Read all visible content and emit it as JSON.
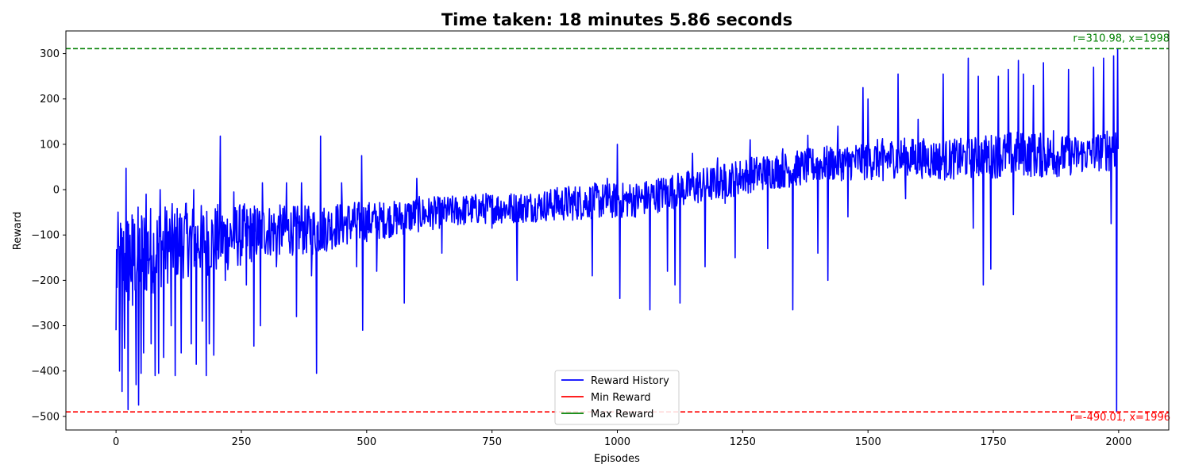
{
  "chart_data": {
    "type": "line",
    "title": "Time taken: 18 minutes 5.86 seconds",
    "xlabel": "Episodes",
    "ylabel": "Reward",
    "xlim": [
      -100,
      2100
    ],
    "ylim": [
      -530,
      350
    ],
    "xticks": [
      0,
      250,
      500,
      750,
      1000,
      1250,
      1500,
      1750,
      2000
    ],
    "yticks": [
      -500,
      -400,
      -300,
      -200,
      -100,
      0,
      100,
      200,
      300
    ],
    "grid": false,
    "legend_position": "bottom-center",
    "series": [
      {
        "name": "Reward History",
        "color": "#0000ff",
        "x_start": 0,
        "x_end": 1999,
        "band_x": [
          0,
          50,
          100,
          150,
          200,
          250,
          300,
          350,
          400,
          450,
          500,
          550,
          600,
          650,
          700,
          750,
          800,
          850,
          900,
          950,
          1000,
          1050,
          1100,
          1150,
          1200,
          1250,
          1300,
          1350,
          1400,
          1450,
          1500,
          1550,
          1600,
          1650,
          1700,
          1750,
          1800,
          1850,
          1900,
          1950,
          1999
        ],
        "band_mean": [
          -170,
          -140,
          -120,
          -110,
          -110,
          -100,
          -90,
          -90,
          -90,
          -75,
          -70,
          -65,
          -55,
          -50,
          -45,
          -40,
          -40,
          -35,
          -30,
          -25,
          -25,
          -20,
          -5,
          5,
          15,
          30,
          40,
          45,
          55,
          60,
          65,
          70,
          70,
          65,
          70,
          75,
          80,
          75,
          75,
          80,
          100
        ],
        "band_spread": [
          120,
          110,
          90,
          80,
          80,
          70,
          60,
          55,
          55,
          50,
          45,
          40,
          40,
          35,
          35,
          35,
          35,
          35,
          40,
          40,
          40,
          40,
          40,
          40,
          40,
          40,
          40,
          40,
          40,
          40,
          45,
          45,
          45,
          45,
          45,
          50,
          50,
          50,
          45,
          40,
          60
        ],
        "spikes": [
          {
            "x": 0,
            "y": -310
          },
          {
            "x": 7,
            "y": -400
          },
          {
            "x": 12,
            "y": -445
          },
          {
            "x": 17,
            "y": -350
          },
          {
            "x": 20,
            "y": 47
          },
          {
            "x": 24,
            "y": -485
          },
          {
            "x": 33,
            "y": -255
          },
          {
            "x": 40,
            "y": -430
          },
          {
            "x": 45,
            "y": -475
          },
          {
            "x": 50,
            "y": -405
          },
          {
            "x": 55,
            "y": -360
          },
          {
            "x": 60,
            "y": -10
          },
          {
            "x": 70,
            "y": -340
          },
          {
            "x": 78,
            "y": -410
          },
          {
            "x": 85,
            "y": -405
          },
          {
            "x": 88,
            "y": 0
          },
          {
            "x": 95,
            "y": -370
          },
          {
            "x": 110,
            "y": -300
          },
          {
            "x": 118,
            "y": -410
          },
          {
            "x": 130,
            "y": -360
          },
          {
            "x": 140,
            "y": -30
          },
          {
            "x": 150,
            "y": -340
          },
          {
            "x": 155,
            "y": 0
          },
          {
            "x": 160,
            "y": -385
          },
          {
            "x": 172,
            "y": -290
          },
          {
            "x": 180,
            "y": -410
          },
          {
            "x": 186,
            "y": -340
          },
          {
            "x": 195,
            "y": -365
          },
          {
            "x": 208,
            "y": 118
          },
          {
            "x": 218,
            "y": -200
          },
          {
            "x": 235,
            "y": -5
          },
          {
            "x": 260,
            "y": -210
          },
          {
            "x": 275,
            "y": -345
          },
          {
            "x": 288,
            "y": -300
          },
          {
            "x": 292,
            "y": 15
          },
          {
            "x": 320,
            "y": -170
          },
          {
            "x": 340,
            "y": 15
          },
          {
            "x": 360,
            "y": -280
          },
          {
            "x": 370,
            "y": 15
          },
          {
            "x": 390,
            "y": -190
          },
          {
            "x": 400,
            "y": -405
          },
          {
            "x": 408,
            "y": 118
          },
          {
            "x": 425,
            "y": -70
          },
          {
            "x": 450,
            "y": 15
          },
          {
            "x": 480,
            "y": -170
          },
          {
            "x": 490,
            "y": 75
          },
          {
            "x": 492,
            "y": -310
          },
          {
            "x": 520,
            "y": -180
          },
          {
            "x": 575,
            "y": -250
          },
          {
            "x": 600,
            "y": 25
          },
          {
            "x": 650,
            "y": -140
          },
          {
            "x": 700,
            "y": -30
          },
          {
            "x": 750,
            "y": -85
          },
          {
            "x": 800,
            "y": -200
          },
          {
            "x": 850,
            "y": -40
          },
          {
            "x": 875,
            "y": 0
          },
          {
            "x": 950,
            "y": -190
          },
          {
            "x": 980,
            "y": 25
          },
          {
            "x": 1000,
            "y": 100
          },
          {
            "x": 1005,
            "y": -240
          },
          {
            "x": 1050,
            "y": -20
          },
          {
            "x": 1065,
            "y": -265
          },
          {
            "x": 1100,
            "y": -180
          },
          {
            "x": 1115,
            "y": -210
          },
          {
            "x": 1125,
            "y": -250
          },
          {
            "x": 1150,
            "y": 80
          },
          {
            "x": 1175,
            "y": -170
          },
          {
            "x": 1200,
            "y": 70
          },
          {
            "x": 1215,
            "y": -30
          },
          {
            "x": 1235,
            "y": -150
          },
          {
            "x": 1265,
            "y": 110
          },
          {
            "x": 1300,
            "y": -130
          },
          {
            "x": 1330,
            "y": 90
          },
          {
            "x": 1350,
            "y": -265
          },
          {
            "x": 1380,
            "y": 120
          },
          {
            "x": 1400,
            "y": -140
          },
          {
            "x": 1420,
            "y": -200
          },
          {
            "x": 1440,
            "y": 140
          },
          {
            "x": 1460,
            "y": -60
          },
          {
            "x": 1490,
            "y": 225
          },
          {
            "x": 1500,
            "y": 200
          },
          {
            "x": 1530,
            "y": 20
          },
          {
            "x": 1560,
            "y": 255
          },
          {
            "x": 1575,
            "y": -20
          },
          {
            "x": 1600,
            "y": 155
          },
          {
            "x": 1650,
            "y": 255
          },
          {
            "x": 1700,
            "y": 290
          },
          {
            "x": 1710,
            "y": -85
          },
          {
            "x": 1720,
            "y": 250
          },
          {
            "x": 1730,
            "y": -210
          },
          {
            "x": 1745,
            "y": -175
          },
          {
            "x": 1760,
            "y": 250
          },
          {
            "x": 1780,
            "y": 265
          },
          {
            "x": 1790,
            "y": -55
          },
          {
            "x": 1800,
            "y": 285
          },
          {
            "x": 1810,
            "y": 255
          },
          {
            "x": 1830,
            "y": 230
          },
          {
            "x": 1850,
            "y": 280
          },
          {
            "x": 1870,
            "y": 130
          },
          {
            "x": 1900,
            "y": 265
          },
          {
            "x": 1950,
            "y": 270
          },
          {
            "x": 1970,
            "y": 290
          },
          {
            "x": 1985,
            "y": -75
          },
          {
            "x": 1990,
            "y": 295
          },
          {
            "x": 1996,
            "y": -490.01
          },
          {
            "x": 1998,
            "y": 310.98
          }
        ]
      },
      {
        "name": "Min Reward",
        "color": "#ff0000",
        "value": -490.01,
        "label": "r=-490.01, x=1996"
      },
      {
        "name": "Max Reward",
        "color": "#008000",
        "value": 310.98,
        "label": "r=310.98, x=1998"
      }
    ]
  }
}
